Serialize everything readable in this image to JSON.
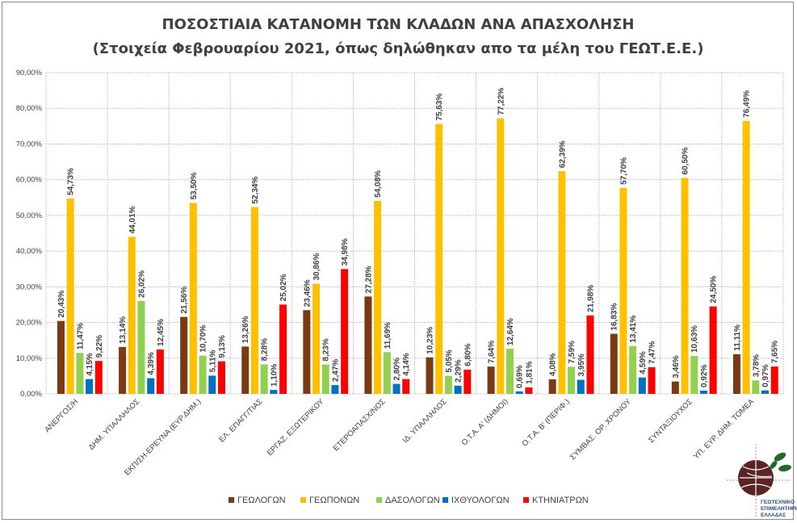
{
  "chart_data": {
    "type": "bar",
    "title": "ΠΟΣΟΣΤΙΑΙΑ ΚΑΤΑΝΟΜΗ ΤΩΝ ΚΛΑΔΩΝ ΑΝΑ ΑΠΑΣΧΟΛΗΣΗ",
    "subtitle": "(Στοιχεία Φεβρουαρίου 2021, όπως δηλώθηκαν απο τα μέλη του ΓΕΩΤ.Ε.Ε.)",
    "xlabel": "",
    "ylabel": "",
    "ylim": [
      0,
      90
    ],
    "yticks": [
      "0,00%",
      "10,00%",
      "20,00%",
      "30,00%",
      "40,00%",
      "50,00%",
      "60,00%",
      "70,00%",
      "80,00%",
      "90,00%"
    ],
    "grid": true,
    "legend_position": "bottom",
    "categories": [
      "ΑΝΕΡΓΟΣ/Η",
      "ΔΗΜ. ΥΠΑΛΛΗΛΟΣ",
      "ΕΚΠ/ΣΗ-ΕΡΕΥΝΑ (ΕΥΡ.ΔΗΜ.)",
      "ΕΛ. ΕΠΑΓΓ/ΤΙΑΣ",
      "ΕΡΓΑΖ. ΕΞΩΤΕΡΙΚΟΥ",
      "ΕΤΕΡΟΑΠΑΣΧ/ΝΟΣ",
      "ΙΔ. ΥΠΑΛΛΗΛΟΣ",
      "Ο.Τ.Α. Α' (ΔΗΜΟΙ)",
      "Ο.Τ.Α. Β' (ΠΕΡΙΦ.)",
      "ΣΥΜΒΑΣ. ΟΡ. ΧΡΟΝΟΥ",
      "ΣΥΝΤΑΞΙΟΥΧΟΣ",
      "ΥΠ. ΕΥΡ. ΔΗΜ. ΤΟΜΕΑ"
    ],
    "series": [
      {
        "name": "ΓΕΩΛΟΓΩΝ",
        "color": "#7B3A14",
        "values": [
          20.43,
          13.14,
          21.56,
          13.26,
          23.46,
          27.28,
          10.23,
          7.64,
          4.08,
          16.83,
          3.46,
          11.11
        ]
      },
      {
        "name": "ΓΕΩΠΟΝΩΝ",
        "color": "#FFC000",
        "values": [
          54.73,
          44.01,
          53.5,
          52.34,
          30.86,
          54.08,
          75.63,
          77.22,
          62.39,
          57.7,
          60.5,
          76.49
        ]
      },
      {
        "name": "ΔΑΣΟΛΟΓΩΝ",
        "color": "#92D050",
        "values": [
          11.47,
          26.02,
          10.7,
          8.28,
          8.23,
          11.69,
          5.05,
          12.64,
          7.59,
          13.41,
          10.63,
          3.78
        ]
      },
      {
        "name": "ΙΧΘΥΟΛΟΓΩΝ",
        "color": "#0070C0",
        "values": [
          4.15,
          4.39,
          5.11,
          1.1,
          2.47,
          2.8,
          2.29,
          0.69,
          3.95,
          4.59,
          0.92,
          0.97
        ]
      },
      {
        "name": "ΚΤΗΝΙΑΤΡΩΝ",
        "color": "#FF0000",
        "values": [
          9.22,
          12.45,
          9.13,
          25.02,
          34.98,
          4.14,
          6.8,
          1.81,
          21.98,
          7.47,
          24.5,
          7.65
        ]
      }
    ]
  },
  "logo": {
    "text": [
      "ΓΕΩΤΕΧΝΙΚΟ",
      "ΕΠΙΜΕΛΗΤΗΡΙΟ",
      "ΕΛΛΑΔΑΣ"
    ],
    "ring_text": "Γ.Ε.Ω.Τ.Ε.Ε."
  }
}
